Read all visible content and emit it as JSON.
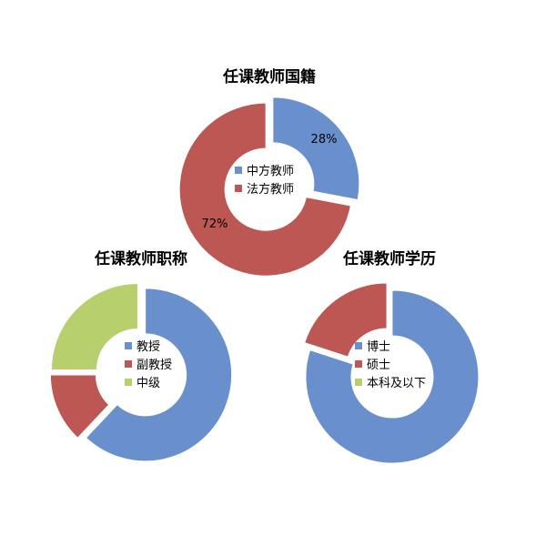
{
  "chart_data": [
    {
      "type": "pie",
      "title": "任课教师国籍",
      "categories": [
        "中方教师",
        "法方教师"
      ],
      "values": [
        28,
        72
      ],
      "data_labels": [
        "28%",
        "72%"
      ],
      "colors": [
        "#6a8fcd",
        "#bd5753"
      ],
      "legend": "center"
    },
    {
      "type": "pie",
      "title": "任课教师职称",
      "categories": [
        "教授",
        "副教授",
        "中级"
      ],
      "values": [
        62,
        13,
        25
      ],
      "colors": [
        "#6a8fcd",
        "#bd5753",
        "#b7cf6c"
      ],
      "legend": "center"
    },
    {
      "type": "pie",
      "title": "任课教师学历",
      "categories": [
        "博士",
        "硕士",
        "本科及以下"
      ],
      "values": [
        80,
        20,
        0
      ],
      "colors": [
        "#6a8fcd",
        "#bd5753",
        "#b7cf6c"
      ],
      "legend": "center"
    }
  ]
}
